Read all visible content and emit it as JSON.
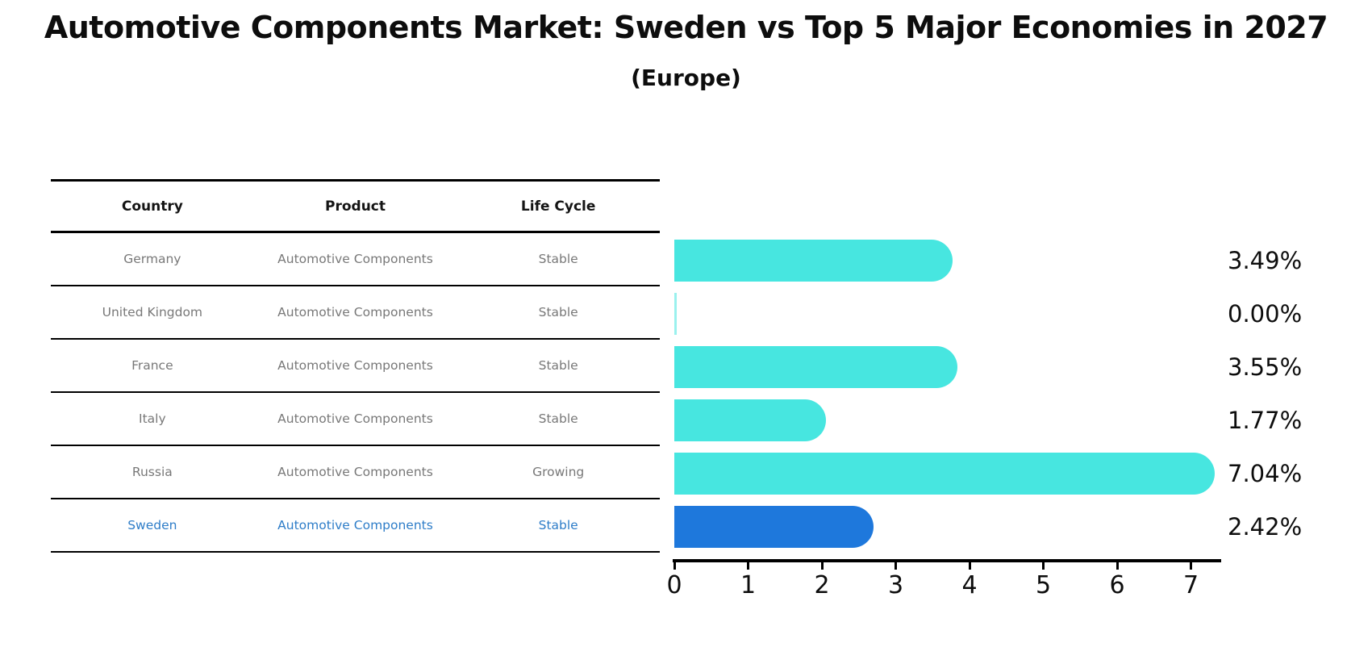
{
  "title": "Automotive Components Market: Sweden vs Top 5 Major Economies in 2027",
  "subtitle": "(Europe)",
  "table": {
    "headers": [
      "Country",
      "Product",
      "Life Cycle"
    ],
    "rows": [
      {
        "country": "Germany",
        "product": "Automotive Components",
        "life_cycle": "Stable",
        "highlighted": false
      },
      {
        "country": "United Kingdom",
        "product": "Automotive Components",
        "life_cycle": "Stable",
        "highlighted": false
      },
      {
        "country": "France",
        "product": "Automotive Components",
        "life_cycle": "Stable",
        "highlighted": false
      },
      {
        "country": "Italy",
        "product": "Automotive Components",
        "life_cycle": "Stable",
        "highlighted": false
      },
      {
        "country": "Russia",
        "product": "Automotive Components",
        "life_cycle": "Growing",
        "highlighted": false
      },
      {
        "country": "Sweden",
        "product": "Automotive Components",
        "life_cycle": "Stable",
        "highlighted": true
      }
    ]
  },
  "chart_data": {
    "type": "bar",
    "orientation": "horizontal",
    "categories": [
      "Germany",
      "United Kingdom",
      "France",
      "Italy",
      "Russia",
      "Sweden"
    ],
    "values": [
      3.49,
      0.0,
      3.55,
      1.77,
      7.04,
      2.42
    ],
    "value_labels": [
      "3.49%",
      "0.00%",
      "3.55%",
      "1.77%",
      "7.04%",
      "2.42%"
    ],
    "x_ticks": [
      "0",
      "1",
      "2",
      "3",
      "4",
      "5",
      "6",
      "7"
    ],
    "xlim": [
      0,
      7.4
    ],
    "grid": false,
    "legend": false,
    "highlight_index": 5,
    "bar_color": "#47E6E0",
    "highlight_color": "#1E78DC",
    "highlight_text_color": "#2E7DC8",
    "row_text_color": "#787878"
  }
}
